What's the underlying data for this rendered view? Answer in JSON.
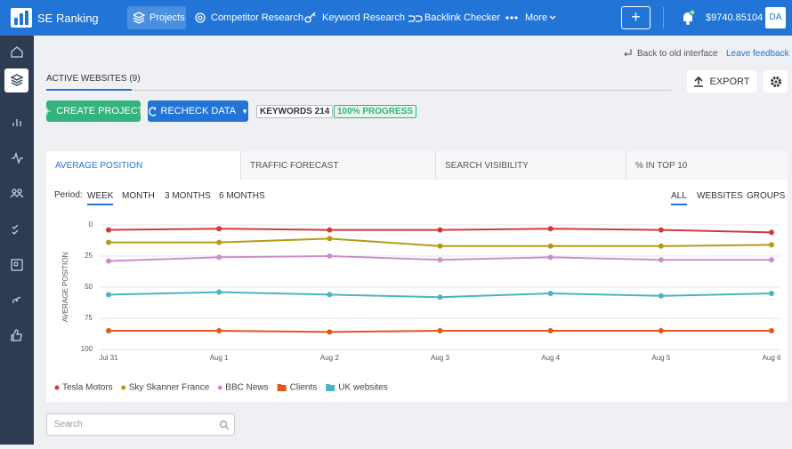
{
  "header": {
    "logo": "SE Ranking",
    "nav": [
      "Projects",
      "Competitor Research",
      "Keyword Research",
      "Backlink Checker",
      "More"
    ],
    "balance": "$9740.85104",
    "avatar": "DA"
  },
  "links": {
    "back": "Back to old interface",
    "feedback": "Leave feedback"
  },
  "tabs": {
    "active_websites": "ACTIVE WEBSITES (9)"
  },
  "actions": {
    "export": "EXPORT",
    "create": "CREATE PROJECT",
    "recheck": "RECHECK DATA",
    "keywords": "KEYWORDS 214",
    "progress": "100% PROGRESS"
  },
  "chart_tabs": [
    "AVERAGE POSITION",
    "TRAFFIC FORECAST",
    "SEARCH VISIBILITY",
    "% IN TOP 10"
  ],
  "period": {
    "label": "Period:",
    "options": [
      "WEEK",
      "MONTH",
      "3 MONTHS",
      "6 MONTHS"
    ]
  },
  "view_options": [
    "ALL",
    "WEBSITES",
    "GROUPS"
  ],
  "search_placeholder": "Search",
  "chart_data": {
    "type": "line",
    "y_label": "AVERAGE POSITION",
    "categories": [
      "Jul 31",
      "Aug 1",
      "Aug 2",
      "Aug 3",
      "Aug 4",
      "Aug 5",
      "Aug 6"
    ],
    "ylim": [
      0,
      100
    ],
    "yticks": [
      0,
      25,
      50,
      75,
      100
    ],
    "y_inverted": true,
    "grid": true,
    "series": [
      {
        "name": "Tesla Motors",
        "color": "#d0393e",
        "marker": "dot",
        "values": [
          4,
          3,
          4,
          4,
          3,
          4,
          6
        ]
      },
      {
        "name": "Sky Skanner France",
        "color": "#b49b16",
        "marker": "dot",
        "values": [
          14,
          14,
          11,
          17,
          17,
          17,
          16
        ]
      },
      {
        "name": "BBC News",
        "color": "#c98fcc",
        "marker": "dot",
        "values": [
          29,
          26,
          25,
          28,
          26,
          28,
          28
        ]
      },
      {
        "name": "Clients",
        "color": "#e0561b",
        "marker": "folder",
        "values": [
          85,
          85,
          86,
          85,
          85,
          85,
          85
        ]
      },
      {
        "name": "UK websites",
        "color": "#4bb5c1",
        "marker": "folder",
        "values": [
          56,
          54,
          56,
          58,
          55,
          57,
          55
        ]
      }
    ]
  }
}
